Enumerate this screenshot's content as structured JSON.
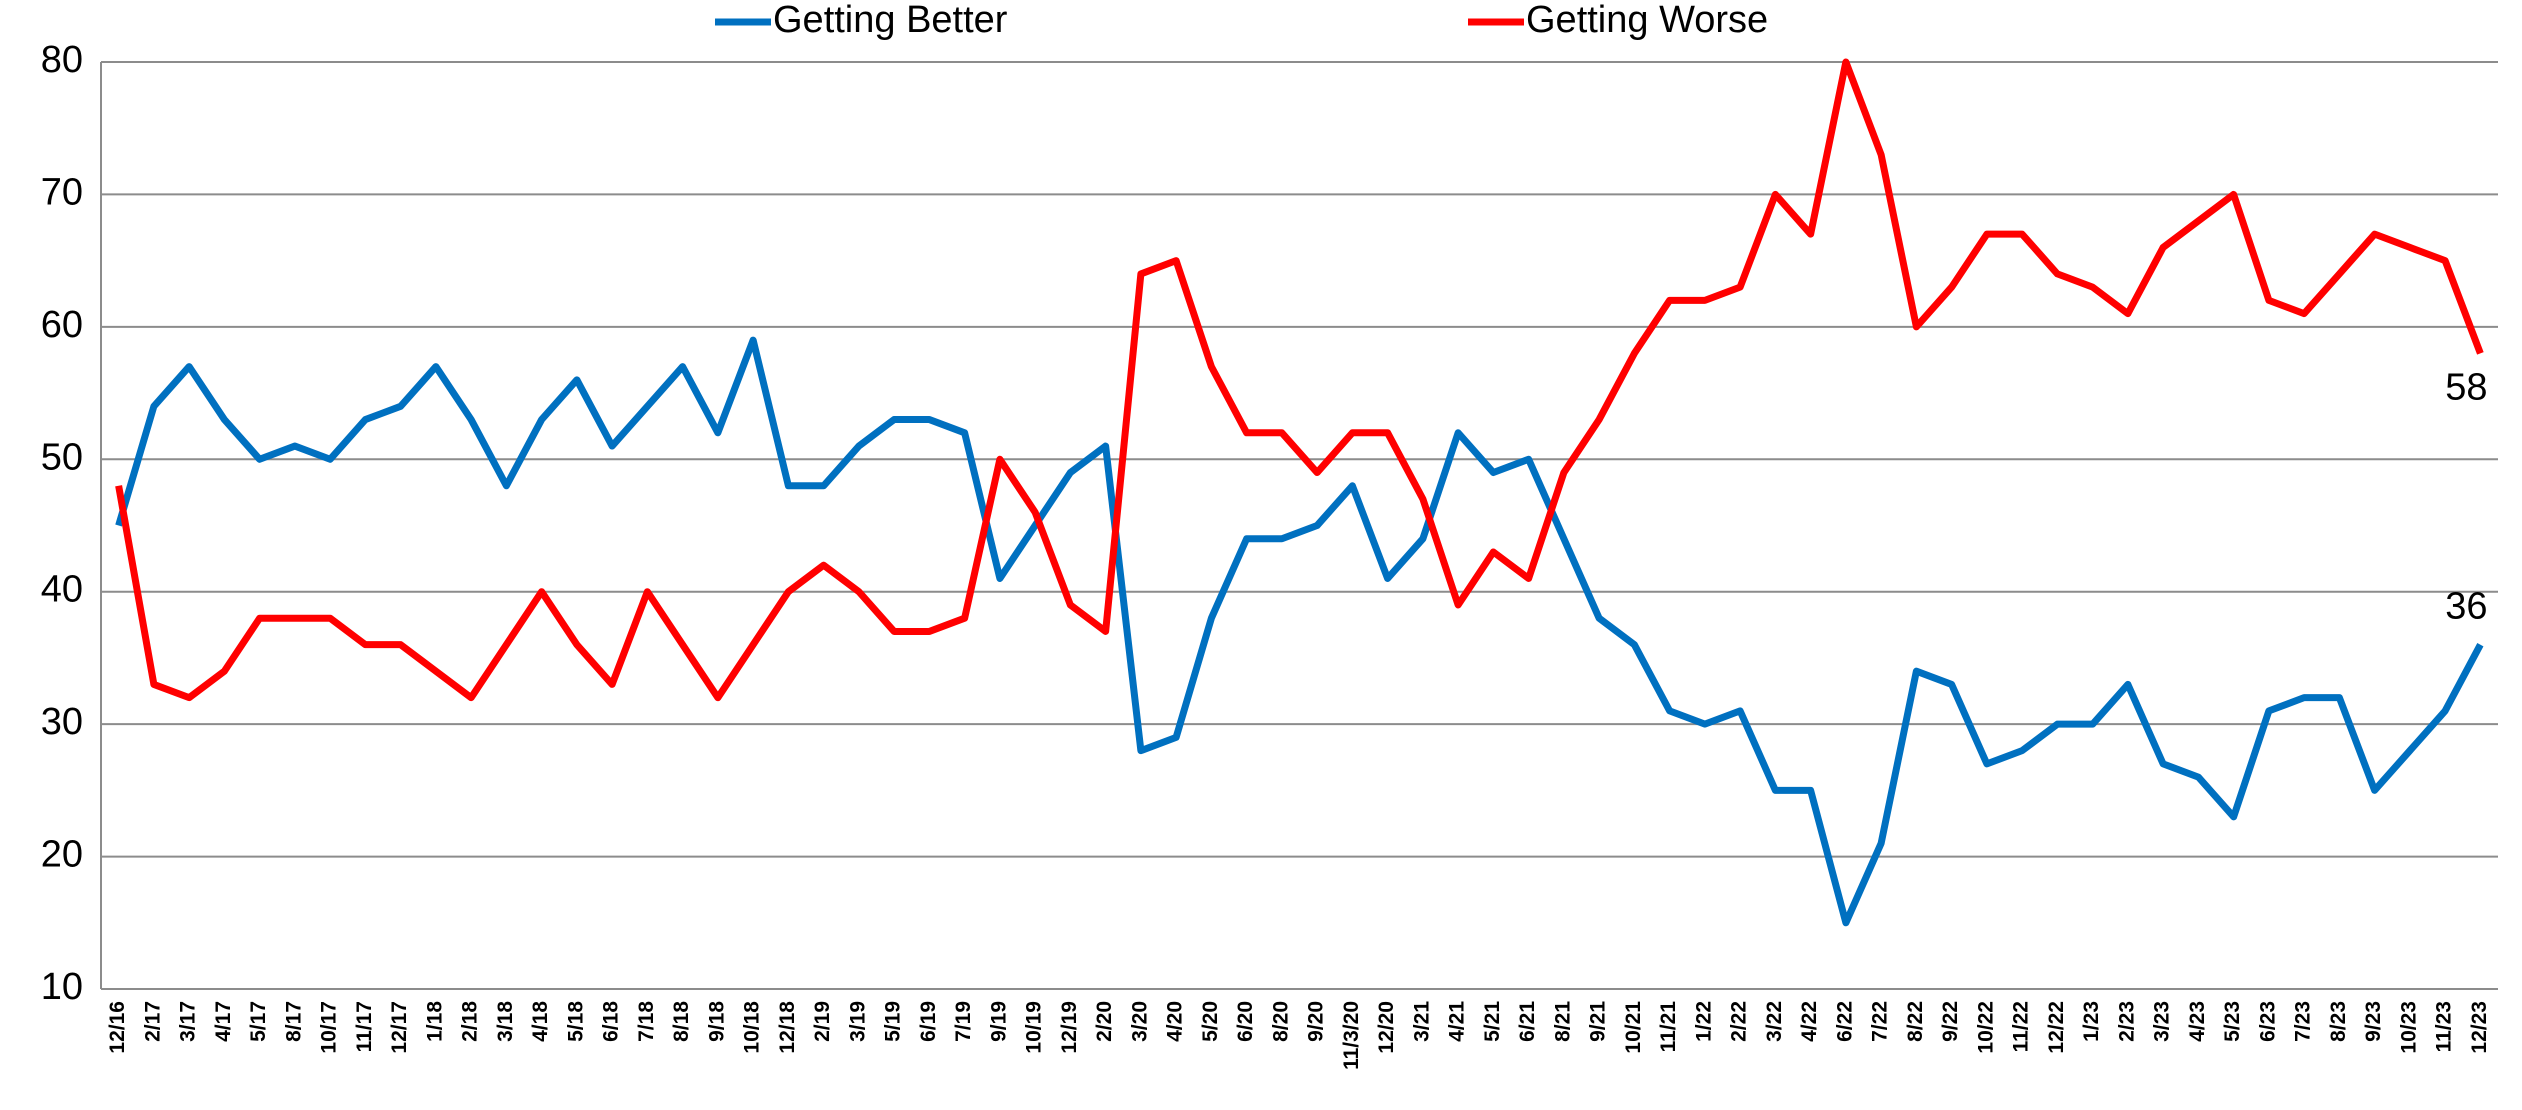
{
  "chart_data": {
    "type": "line",
    "categories": [
      "12/16",
      "2/17",
      "3/17",
      "4/17",
      "5/17",
      "8/17",
      "10/17",
      "11/17",
      "12/17",
      "1/18",
      "2/18",
      "3/18",
      "4/18",
      "5/18",
      "6/18",
      "7/18",
      "8/18",
      "9/18",
      "10/18",
      "12/18",
      "2/19",
      "3/19",
      "5/19",
      "6/19",
      "7/19",
      "9/19",
      "10/19",
      "12/19",
      "2/20",
      "3/20",
      "4/20",
      "5/20",
      "6/20",
      "8/20",
      "9/20",
      "11/3/20",
      "12/20",
      "3/21",
      "4/21",
      "5/21",
      "6/21",
      "8/21",
      "9/21",
      "10/21",
      "11/21",
      "1/22",
      "2/22",
      "3/22",
      "4/22",
      "6/22",
      "7/22",
      "8/22",
      "9/22",
      "10/22",
      "11/22",
      "12/22",
      "1/23",
      "2/23",
      "3/23",
      "4/23",
      "5/23",
      "6/23",
      "7/23",
      "8/23",
      "9/23",
      "10/23",
      "11/23",
      "12/23"
    ],
    "series": [
      {
        "name": "Getting Better",
        "color": "#0070c0",
        "values": [
          45,
          54,
          57,
          53,
          50,
          51,
          50,
          53,
          54,
          57,
          53,
          48,
          53,
          56,
          51,
          54,
          57,
          52,
          59,
          48,
          48,
          51,
          53,
          53,
          52,
          41,
          45,
          49,
          51,
          28,
          29,
          38,
          44,
          44,
          45,
          48,
          41,
          44,
          52,
          49,
          50,
          44,
          38,
          36,
          31,
          30,
          31,
          25,
          25,
          15,
          21,
          34,
          33,
          27,
          28,
          30,
          30,
          33,
          27,
          26,
          23,
          31,
          32,
          32,
          25,
          28,
          31,
          36
        ]
      },
      {
        "name": "Getting Worse",
        "color": "#ff0000",
        "values": [
          48,
          33,
          32,
          34,
          38,
          38,
          38,
          36,
          36,
          34,
          32,
          36,
          40,
          36,
          33,
          40,
          36,
          32,
          36,
          40,
          42,
          40,
          37,
          37,
          38,
          50,
          46,
          39,
          37,
          64,
          65,
          57,
          52,
          52,
          49,
          52,
          52,
          47,
          39,
          43,
          41,
          49,
          53,
          58,
          62,
          62,
          63,
          70,
          67,
          80,
          73,
          60,
          63,
          67,
          67,
          64,
          63,
          61,
          66,
          68,
          70,
          62,
          61,
          64,
          67,
          66,
          65,
          58
        ]
      }
    ],
    "ylim": [
      10,
      80
    ],
    "yticks": [
      10,
      20,
      30,
      40,
      50,
      60,
      70,
      80
    ],
    "grid": true,
    "legend": "top"
  }
}
